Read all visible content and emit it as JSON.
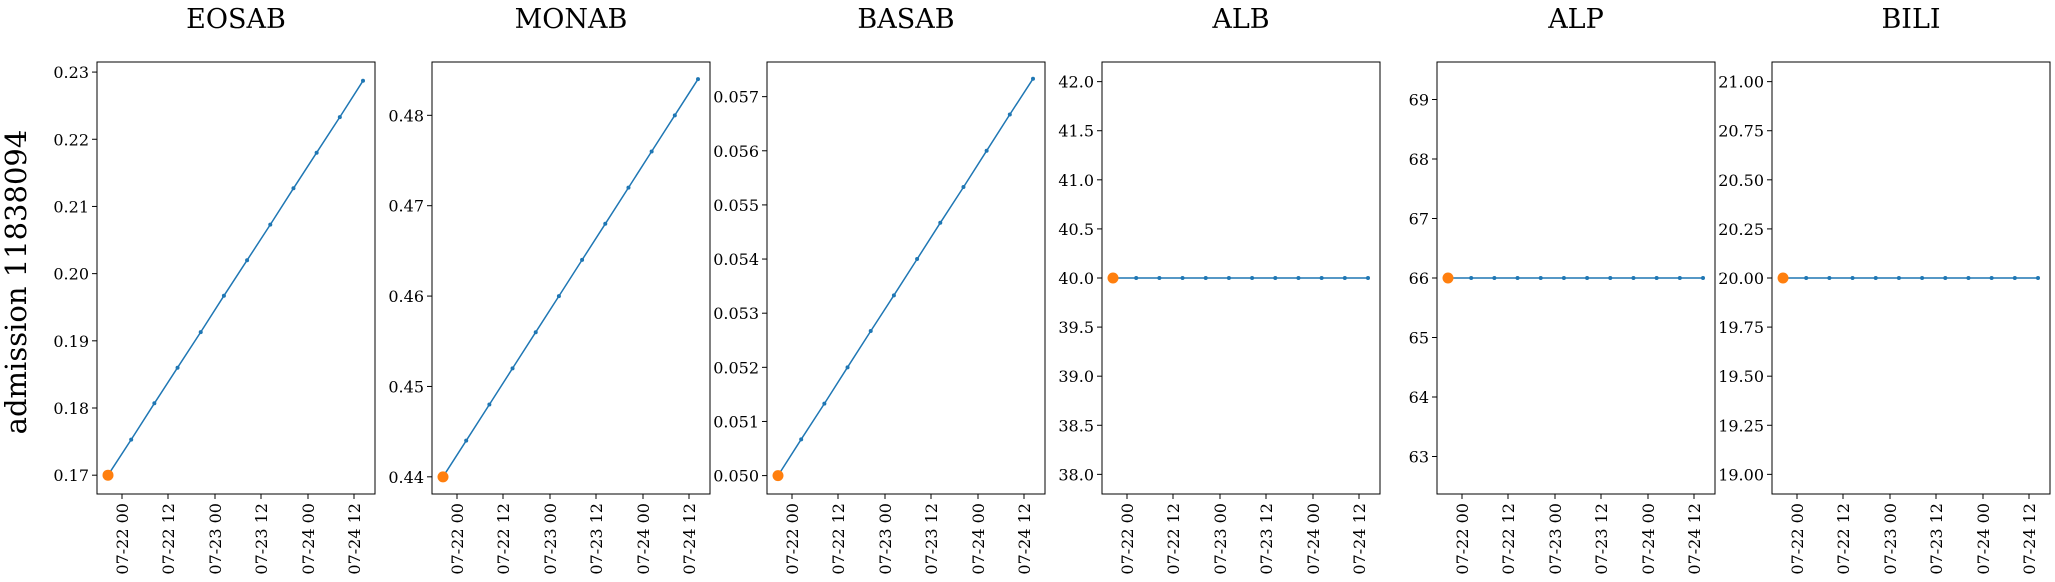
{
  "figure": {
    "row_label": "admission 11838094"
  },
  "colors": {
    "line": "#1f77b4",
    "highlight": "#ff7f0e"
  },
  "x_ticks": [
    "07-22 00",
    "07-22 12",
    "07-23 00",
    "07-23 12",
    "07-24 00",
    "07-24 12"
  ],
  "chart_data": [
    {
      "type": "line",
      "title": "EOSAB",
      "xlabel": "",
      "ylabel": "",
      "ylim": [
        0.1672,
        0.2315
      ],
      "yticks": [
        0.17,
        0.18,
        0.19,
        0.2,
        0.21,
        0.22,
        0.23
      ],
      "ytick_labels": [
        "0.17",
        "0.18",
        "0.19",
        "0.20",
        "0.21",
        "0.22",
        "0.23"
      ],
      "series": [
        {
          "values": [
            0.17,
            0.1753,
            0.1807,
            0.186,
            0.1913,
            0.1967,
            0.202,
            0.2073,
            0.2127,
            0.218,
            0.2233,
            0.2287
          ]
        }
      ],
      "highlight": {
        "index": 0,
        "value": 0.17
      }
    },
    {
      "type": "line",
      "title": "MONAB",
      "xlabel": "",
      "ylabel": "",
      "ylim": [
        0.4381,
        0.4859
      ],
      "yticks": [
        0.44,
        0.45,
        0.46,
        0.47,
        0.48
      ],
      "ytick_labels": [
        "0.44",
        "0.45",
        "0.46",
        "0.47",
        "0.48"
      ],
      "series": [
        {
          "values": [
            0.44,
            0.444,
            0.448,
            0.452,
            0.456,
            0.46,
            0.464,
            0.468,
            0.472,
            0.476,
            0.48,
            0.484
          ]
        }
      ],
      "highlight": {
        "index": 0,
        "value": 0.44
      }
    },
    {
      "type": "line",
      "title": "BASAB",
      "xlabel": "",
      "ylabel": "",
      "ylim": [
        0.04966,
        0.05764
      ],
      "yticks": [
        0.05,
        0.051,
        0.052,
        0.053,
        0.054,
        0.055,
        0.056,
        0.057
      ],
      "ytick_labels": [
        "0.050",
        "0.051",
        "0.052",
        "0.053",
        "0.054",
        "0.055",
        "0.056",
        "0.057"
      ],
      "series": [
        {
          "values": [
            0.05,
            0.05067,
            0.05133,
            0.052,
            0.05267,
            0.05333,
            0.054,
            0.05467,
            0.05533,
            0.056,
            0.05667,
            0.05733
          ]
        }
      ],
      "highlight": {
        "index": 0,
        "value": 0.05
      }
    },
    {
      "type": "line",
      "title": "ALB",
      "xlabel": "",
      "ylabel": "",
      "ylim": [
        37.8,
        42.2
      ],
      "yticks": [
        38.0,
        38.5,
        39.0,
        39.5,
        40.0,
        40.5,
        41.0,
        41.5,
        42.0
      ],
      "ytick_labels": [
        "38.0",
        "38.5",
        "39.0",
        "39.5",
        "40.0",
        "40.5",
        "41.0",
        "41.5",
        "42.0"
      ],
      "series": [
        {
          "values": [
            40,
            40,
            40,
            40,
            40,
            40,
            40,
            40,
            40,
            40,
            40,
            40
          ]
        }
      ],
      "highlight": {
        "index": 0,
        "value": 40.0
      }
    },
    {
      "type": "line",
      "title": "ALP",
      "xlabel": "",
      "ylabel": "",
      "ylim": [
        62.37,
        69.63
      ],
      "yticks": [
        63,
        64,
        65,
        66,
        67,
        68,
        69
      ],
      "ytick_labels": [
        "63",
        "64",
        "65",
        "66",
        "67",
        "68",
        "69"
      ],
      "series": [
        {
          "values": [
            66,
            66,
            66,
            66,
            66,
            66,
            66,
            66,
            66,
            66,
            66,
            66
          ]
        }
      ],
      "highlight": {
        "index": 0,
        "value": 66
      }
    },
    {
      "type": "line",
      "title": "BILI",
      "xlabel": "",
      "ylabel": "",
      "ylim": [
        18.9,
        21.1
      ],
      "yticks": [
        19.0,
        19.25,
        19.5,
        19.75,
        20.0,
        20.25,
        20.5,
        20.75,
        21.0
      ],
      "ytick_labels": [
        "19.00",
        "19.25",
        "19.50",
        "19.75",
        "20.00",
        "20.25",
        "20.50",
        "20.75",
        "21.00"
      ],
      "series": [
        {
          "values": [
            20,
            20,
            20,
            20,
            20,
            20,
            20,
            20,
            20,
            20,
            20,
            20
          ]
        }
      ],
      "highlight": {
        "index": 0,
        "value": 20.0
      }
    }
  ]
}
